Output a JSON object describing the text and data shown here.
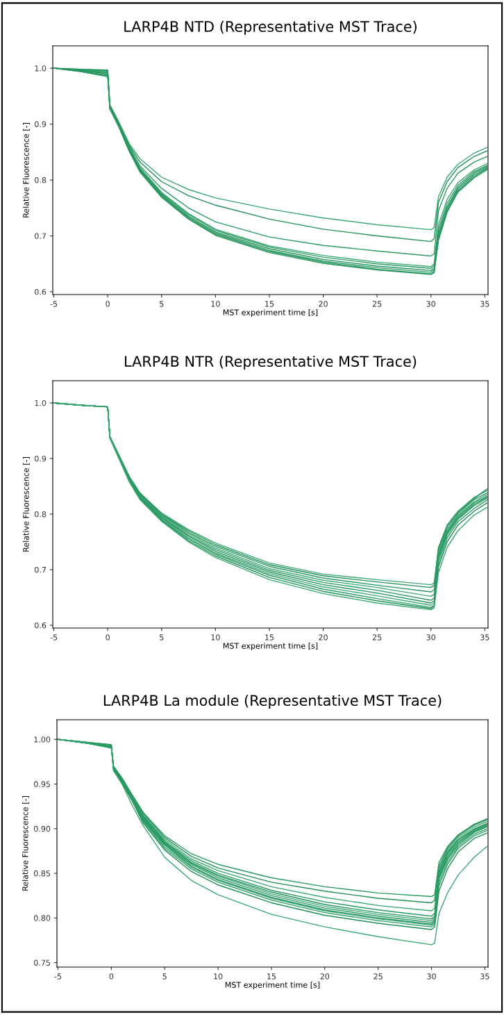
{
  "chart_data": [
    {
      "type": "line",
      "title": "LARP4B NTD (Representative MST Trace)",
      "xlabel": "MST experiment time [s]",
      "ylabel": "Relative Fluorescence [-]",
      "grid": false,
      "marker": "none",
      "line_style": "solid",
      "xlim": [
        -5.1,
        35.3
      ],
      "xticks": [
        -5,
        0,
        5,
        10,
        15,
        20,
        25,
        30,
        35
      ],
      "ylim": [
        0.595,
        1.04
      ],
      "yticks": [
        0.6,
        0.7,
        0.8,
        0.9,
        {
          "value": 1.0,
          "label": "1.0"
        }
      ],
      "x": [
        -5,
        -2.5,
        0,
        0.2,
        1,
        2,
        3,
        5,
        7.5,
        10,
        15,
        20,
        25,
        30,
        30.3,
        30.7,
        31.5,
        32.5,
        34,
        35.2
      ],
      "series": [
        {
          "color": "#3aa873",
          "values": [
            1.0,
            0.998,
            0.997,
            0.935,
            0.905,
            0.865,
            0.838,
            0.805,
            0.783,
            0.768,
            0.748,
            0.732,
            0.72,
            0.711,
            0.715,
            0.77,
            0.805,
            0.828,
            0.848,
            0.858
          ]
        },
        {
          "color": "#1f8f55",
          "values": [
            1.0,
            0.998,
            0.996,
            0.933,
            0.903,
            0.862,
            0.832,
            0.797,
            0.772,
            0.755,
            0.73,
            0.712,
            0.7,
            0.69,
            0.695,
            0.76,
            0.797,
            0.822,
            0.842,
            0.852
          ]
        },
        {
          "color": "#2a9a62",
          "values": [
            1.0,
            0.997,
            0.995,
            0.932,
            0.902,
            0.86,
            0.825,
            0.785,
            0.75,
            0.725,
            0.698,
            0.683,
            0.673,
            0.664,
            0.668,
            0.745,
            0.785,
            0.812,
            0.832,
            0.842
          ]
        },
        {
          "color": "#3aa873",
          "values": [
            1.0,
            0.997,
            0.993,
            0.93,
            0.9,
            0.857,
            0.822,
            0.778,
            0.74,
            0.712,
            0.682,
            0.665,
            0.653,
            0.645,
            0.65,
            0.72,
            0.765,
            0.795,
            0.818,
            0.829
          ]
        },
        {
          "color": "#2a9a62",
          "values": [
            1.0,
            0.996,
            0.992,
            0.93,
            0.9,
            0.856,
            0.82,
            0.776,
            0.738,
            0.71,
            0.68,
            0.662,
            0.65,
            0.642,
            0.647,
            0.712,
            0.758,
            0.79,
            0.815,
            0.826
          ]
        },
        {
          "color": "#1f8f55",
          "values": [
            1.0,
            0.996,
            0.99,
            0.929,
            0.899,
            0.855,
            0.818,
            0.774,
            0.735,
            0.707,
            0.677,
            0.658,
            0.646,
            0.638,
            0.642,
            0.705,
            0.752,
            0.786,
            0.812,
            0.824
          ]
        },
        {
          "color": "#2a9a62",
          "values": [
            1.0,
            0.995,
            0.988,
            0.928,
            0.898,
            0.853,
            0.816,
            0.772,
            0.733,
            0.705,
            0.674,
            0.655,
            0.643,
            0.635,
            0.639,
            0.7,
            0.748,
            0.783,
            0.809,
            0.822
          ]
        },
        {
          "color": "#1f8f55",
          "values": [
            1.0,
            0.994,
            0.986,
            0.928,
            0.897,
            0.852,
            0.815,
            0.77,
            0.731,
            0.703,
            0.672,
            0.653,
            0.64,
            0.632,
            0.636,
            0.695,
            0.744,
            0.78,
            0.806,
            0.82
          ]
        },
        {
          "color": "#2a9a62",
          "values": [
            1.0,
            0.994,
            0.985,
            0.927,
            0.896,
            0.851,
            0.814,
            0.769,
            0.73,
            0.701,
            0.67,
            0.651,
            0.639,
            0.631,
            0.634,
            0.692,
            0.742,
            0.778,
            0.804,
            0.818
          ]
        }
      ]
    },
    {
      "type": "line",
      "title": "LARP4B NTR (Representative MST Trace)",
      "xlabel": "MST experiment time [s]",
      "ylabel": "Relative Fluorescence [-]",
      "grid": false,
      "marker": "none",
      "line_style": "solid",
      "xlim": [
        -5.1,
        35.3
      ],
      "xticks": [
        -5,
        0,
        5,
        10,
        15,
        20,
        25,
        30,
        35
      ],
      "ylim": [
        0.595,
        1.04
      ],
      "yticks": [
        0.6,
        0.7,
        0.8,
        0.9,
        {
          "value": 1.0,
          "label": "1.0"
        }
      ],
      "x": [
        -5,
        -2.5,
        0,
        0.2,
        1,
        2,
        3,
        5,
        7.5,
        10,
        15,
        20,
        25,
        30,
        30.3,
        30.7,
        31.5,
        32.5,
        34,
        35.2
      ],
      "series": [
        {
          "color": "#3aa873",
          "values": [
            1.0,
            0.996,
            0.993,
            0.94,
            0.908,
            0.868,
            0.838,
            0.802,
            0.772,
            0.748,
            0.712,
            0.692,
            0.682,
            0.673,
            0.676,
            0.74,
            0.78,
            0.805,
            0.83,
            0.842
          ]
        },
        {
          "color": "#1f8f55",
          "values": [
            1.0,
            0.996,
            0.993,
            0.94,
            0.907,
            0.867,
            0.837,
            0.8,
            0.77,
            0.745,
            0.709,
            0.689,
            0.678,
            0.668,
            0.672,
            0.738,
            0.778,
            0.803,
            0.828,
            0.845
          ]
        },
        {
          "color": "#2a9a62",
          "values": [
            1.0,
            0.996,
            0.993,
            0.939,
            0.906,
            0.866,
            0.835,
            0.799,
            0.767,
            0.742,
            0.706,
            0.685,
            0.672,
            0.66,
            0.664,
            0.733,
            0.774,
            0.8,
            0.826,
            0.838
          ]
        },
        {
          "color": "#3aa873",
          "values": [
            1.0,
            0.996,
            0.993,
            0.939,
            0.905,
            0.864,
            0.834,
            0.797,
            0.765,
            0.739,
            0.702,
            0.681,
            0.668,
            0.652,
            0.656,
            0.728,
            0.77,
            0.797,
            0.822,
            0.835
          ]
        },
        {
          "color": "#2a9a62",
          "values": [
            1.0,
            0.996,
            0.993,
            0.938,
            0.905,
            0.863,
            0.832,
            0.795,
            0.762,
            0.736,
            0.699,
            0.677,
            0.663,
            0.645,
            0.649,
            0.725,
            0.768,
            0.795,
            0.82,
            0.832
          ]
        },
        {
          "color": "#1f8f55",
          "values": [
            1.0,
            0.996,
            0.993,
            0.938,
            0.904,
            0.862,
            0.831,
            0.794,
            0.76,
            0.733,
            0.696,
            0.673,
            0.658,
            0.64,
            0.644,
            0.722,
            0.765,
            0.792,
            0.817,
            0.83
          ]
        },
        {
          "color": "#3aa873",
          "values": [
            1.0,
            0.996,
            0.993,
            0.938,
            0.904,
            0.861,
            0.829,
            0.792,
            0.757,
            0.73,
            0.693,
            0.669,
            0.653,
            0.636,
            0.64,
            0.718,
            0.762,
            0.79,
            0.815,
            0.828
          ]
        },
        {
          "color": "#2a9a62",
          "values": [
            1.0,
            0.996,
            0.993,
            0.937,
            0.903,
            0.86,
            0.828,
            0.79,
            0.755,
            0.728,
            0.69,
            0.665,
            0.648,
            0.632,
            0.636,
            0.712,
            0.757,
            0.786,
            0.81,
            0.825
          ]
        },
        {
          "color": "#1f8f55",
          "values": [
            1.0,
            0.996,
            0.993,
            0.937,
            0.902,
            0.859,
            0.827,
            0.789,
            0.752,
            0.725,
            0.686,
            0.661,
            0.644,
            0.63,
            0.634,
            0.705,
            0.75,
            0.78,
            0.805,
            0.82
          ]
        },
        {
          "color": "#3aa873",
          "values": [
            1.0,
            0.996,
            0.993,
            0.937,
            0.902,
            0.858,
            0.826,
            0.787,
            0.75,
            0.722,
            0.682,
            0.657,
            0.64,
            0.628,
            0.631,
            0.695,
            0.74,
            0.77,
            0.798,
            0.812
          ]
        }
      ]
    },
    {
      "type": "line",
      "title": "LARP4B La module (Representative MST Trace)",
      "xlabel": "MST experiment time [s]",
      "ylabel": "Relative Fluorescence [-]",
      "grid": false,
      "marker": "none",
      "line_style": "solid",
      "xlim": [
        -5.1,
        35.3
      ],
      "xticks": [
        -5,
        0,
        5,
        10,
        15,
        20,
        25,
        30,
        35
      ],
      "ylim": [
        0.745,
        1.022
      ],
      "yticks": [
        0.75,
        {
          "value": 0.8,
          "label": "0.80"
        },
        0.85,
        {
          "value": 0.9,
          "label": "0.90"
        },
        0.95,
        {
          "value": 1.0,
          "label": "1.00"
        }
      ],
      "x": [
        -5,
        -2.5,
        0,
        0.2,
        1,
        2,
        3,
        5,
        7.5,
        10,
        15,
        20,
        25,
        30,
        30.3,
        30.7,
        31.5,
        32.5,
        34,
        35.2
      ],
      "series": [
        {
          "color": "#2a9a62",
          "values": [
            1.0,
            0.997,
            0.994,
            0.97,
            0.957,
            0.937,
            0.918,
            0.892,
            0.872,
            0.86,
            0.845,
            0.835,
            0.828,
            0.824,
            0.826,
            0.862,
            0.88,
            0.893,
            0.905,
            0.911
          ]
        },
        {
          "color": "#1f8f55",
          "values": [
            1.0,
            0.997,
            0.994,
            0.97,
            0.956,
            0.936,
            0.917,
            0.89,
            0.869,
            0.856,
            0.84,
            0.83,
            0.822,
            0.817,
            0.82,
            0.858,
            0.878,
            0.892,
            0.904,
            0.91
          ]
        },
        {
          "color": "#3aa873",
          "values": [
            1.0,
            0.997,
            0.993,
            0.969,
            0.955,
            0.935,
            0.915,
            0.888,
            0.866,
            0.853,
            0.835,
            0.823,
            0.814,
            0.808,
            0.811,
            0.855,
            0.876,
            0.89,
            0.902,
            0.908
          ]
        },
        {
          "color": "#2a9a62",
          "values": [
            1.0,
            0.997,
            0.993,
            0.969,
            0.955,
            0.934,
            0.914,
            0.886,
            0.864,
            0.85,
            0.831,
            0.818,
            0.809,
            0.802,
            0.805,
            0.852,
            0.874,
            0.888,
            0.9,
            0.906
          ]
        },
        {
          "color": "#1f8f55",
          "values": [
            1.0,
            0.996,
            0.993,
            0.969,
            0.954,
            0.934,
            0.913,
            0.885,
            0.862,
            0.848,
            0.829,
            0.815,
            0.806,
            0.799,
            0.802,
            0.85,
            0.872,
            0.887,
            0.899,
            0.905
          ]
        },
        {
          "color": "#3aa873",
          "values": [
            1.0,
            0.996,
            0.993,
            0.968,
            0.954,
            0.933,
            0.912,
            0.884,
            0.861,
            0.847,
            0.827,
            0.813,
            0.804,
            0.797,
            0.8,
            0.848,
            0.87,
            0.885,
            0.898,
            0.904
          ]
        },
        {
          "color": "#2a9a62",
          "values": [
            1.0,
            0.996,
            0.992,
            0.968,
            0.953,
            0.933,
            0.911,
            0.883,
            0.86,
            0.845,
            0.825,
            0.811,
            0.802,
            0.795,
            0.798,
            0.846,
            0.868,
            0.884,
            0.897,
            0.903
          ]
        },
        {
          "color": "#1f8f55",
          "values": [
            1.0,
            0.996,
            0.992,
            0.968,
            0.953,
            0.932,
            0.91,
            0.882,
            0.858,
            0.843,
            0.823,
            0.809,
            0.8,
            0.793,
            0.796,
            0.844,
            0.866,
            0.882,
            0.896,
            0.902
          ]
        },
        {
          "color": "#3aa873",
          "values": [
            1.0,
            0.996,
            0.992,
            0.967,
            0.952,
            0.932,
            0.909,
            0.88,
            0.857,
            0.842,
            0.822,
            0.808,
            0.799,
            0.792,
            0.795,
            0.84,
            0.863,
            0.88,
            0.894,
            0.9
          ]
        },
        {
          "color": "#2a9a62",
          "values": [
            1.0,
            0.996,
            0.992,
            0.967,
            0.952,
            0.931,
            0.908,
            0.878,
            0.855,
            0.84,
            0.82,
            0.806,
            0.797,
            0.79,
            0.793,
            0.836,
            0.86,
            0.878,
            0.892,
            0.898
          ]
        },
        {
          "color": "#1f8f55",
          "values": [
            1.0,
            0.996,
            0.991,
            0.966,
            0.951,
            0.93,
            0.906,
            0.876,
            0.852,
            0.837,
            0.817,
            0.803,
            0.794,
            0.787,
            0.79,
            0.83,
            0.855,
            0.874,
            0.889,
            0.895
          ]
        },
        {
          "color": "#3aa873",
          "values": [
            1.0,
            0.996,
            0.99,
            0.965,
            0.95,
            0.925,
            0.903,
            0.868,
            0.842,
            0.826,
            0.804,
            0.79,
            0.779,
            0.77,
            0.772,
            0.805,
            0.828,
            0.848,
            0.868,
            0.88
          ]
        }
      ]
    }
  ]
}
